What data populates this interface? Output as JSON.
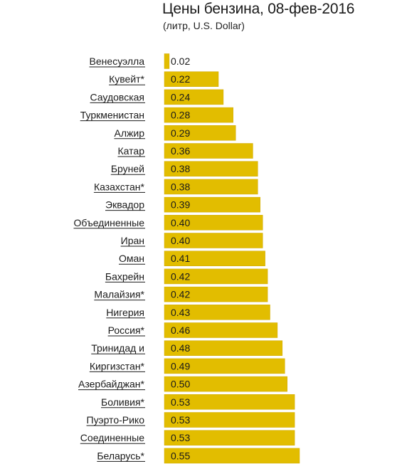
{
  "chart_data": {
    "type": "bar",
    "orientation": "horizontal",
    "title": "Цены бензина, 08-фев-2016",
    "subtitle": "(литр, U.S. Dollar)",
    "categories": [
      "Венесуэлла",
      "Кувейт*",
      "Саудовская",
      "Туркменистан",
      "Алжир",
      "Катар",
      "Бруней",
      "Казахстан*",
      "Эквадор",
      "Объединенные",
      "Иран",
      "Оман",
      "Бахрейн",
      "Малайзия*",
      "Нигерия",
      "Россия*",
      "Тринидад и",
      "Киргизстан*",
      "Азербайджан*",
      "Боливия*",
      "Пуэрто-Рико",
      "Соединенные",
      "Беларусь*"
    ],
    "values": [
      0.02,
      0.22,
      0.24,
      0.28,
      0.29,
      0.36,
      0.38,
      0.38,
      0.39,
      0.4,
      0.4,
      0.41,
      0.42,
      0.42,
      0.43,
      0.46,
      0.48,
      0.49,
      0.5,
      0.53,
      0.53,
      0.53,
      0.55
    ],
    "value_labels": [
      "0.02",
      "0.22",
      "0.24",
      "0.28",
      "0.29",
      "0.36",
      "0.38",
      "0.38",
      "0.39",
      "0.40",
      "0.40",
      "0.41",
      "0.42",
      "0.42",
      "0.43",
      "0.46",
      "0.48",
      "0.49",
      "0.50",
      "0.53",
      "0.53",
      "0.53",
      "0.55"
    ],
    "xlim": [
      0,
      0.55
    ],
    "grid": false,
    "legend": "none",
    "colors": {
      "bar": "#e2bd00",
      "bar_edge": "#cfa800",
      "text": "#1a1a1a",
      "link_underline": "#1a1a1a"
    }
  }
}
